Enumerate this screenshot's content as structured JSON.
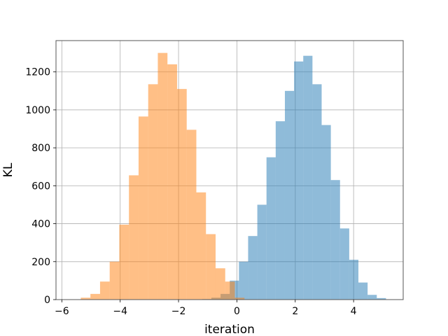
{
  "chart_data": {
    "type": "bar",
    "title": "",
    "xlabel": "iteration",
    "ylabel": "KL",
    "xlim": [
      -6.2,
      5.7
    ],
    "ylim": [
      0,
      1365
    ],
    "grid": true,
    "xticks": [
      -6,
      -4,
      -2,
      0,
      2,
      4
    ],
    "yticks": [
      0,
      200,
      400,
      600,
      800,
      1000,
      1200
    ],
    "series": [
      {
        "color": "#1f77b4",
        "opacity": 0.5,
        "bin_edges": [
          -1.19,
          -0.875,
          -0.56,
          -0.245,
          0.07,
          0.385,
          0.7,
          1.015,
          1.33,
          1.645,
          1.96,
          2.275,
          2.59,
          2.905,
          3.22,
          3.535,
          3.85,
          4.165,
          4.48,
          4.795,
          5.11
        ],
        "counts": [
          3,
          10,
          30,
          100,
          200,
          335,
          500,
          750,
          940,
          1100,
          1255,
          1285,
          1135,
          920,
          630,
          375,
          210,
          90,
          25,
          8
        ]
      },
      {
        "color": "#ff7f0e",
        "opacity": 0.5,
        "bin_edges": [
          -5.35,
          -5.02,
          -4.69,
          -4.36,
          -4.03,
          -3.7,
          -3.37,
          -3.04,
          -2.71,
          -2.38,
          -2.05,
          -1.72,
          -1.39,
          -1.06,
          -0.73,
          -0.4,
          -0.07,
          0.26
        ],
        "counts": [
          10,
          30,
          95,
          200,
          395,
          655,
          965,
          1135,
          1300,
          1240,
          1110,
          895,
          565,
          345,
          165,
          95,
          10
        ]
      }
    ]
  }
}
